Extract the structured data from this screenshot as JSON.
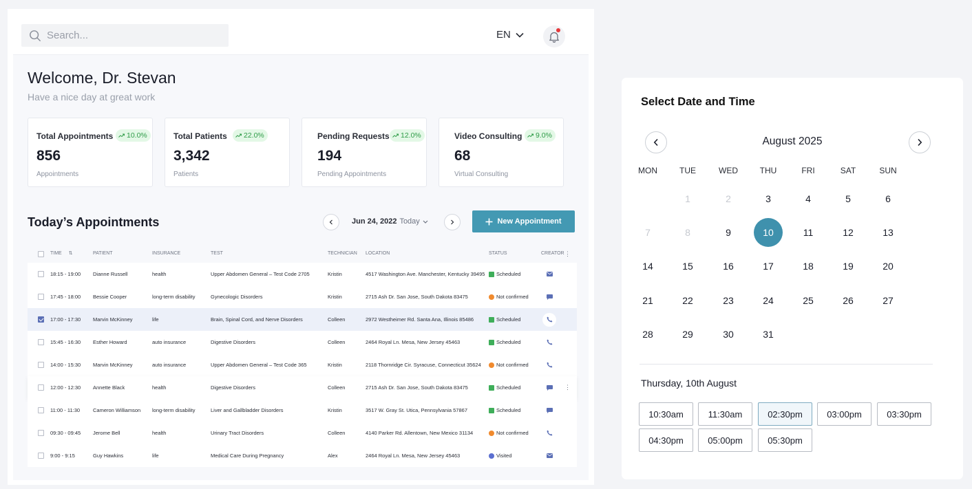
{
  "header": {
    "search_placeholder": "Search...",
    "language": "EN"
  },
  "welcome": {
    "title": "Welcome, Dr. Stevan",
    "subtitle": "Have a nice day at great work"
  },
  "stats": [
    {
      "label": "Total Appointments",
      "change": "10.0%",
      "value": "856",
      "caption": "Appointments"
    },
    {
      "label": "Total Patients",
      "change": "22.0%",
      "value": "3,342",
      "caption": "Patients"
    },
    {
      "label": "Pending Requests",
      "change": "12.0%",
      "value": "194",
      "caption": "Pending Appointments"
    },
    {
      "label": "Video Consulting",
      "change": "9.0%",
      "value": "68",
      "caption": "Virtual Consulting"
    }
  ],
  "appointments": {
    "title": "Today’s Appointments",
    "date": "Jun 24, 2022",
    "date_suffix": "Today",
    "new_button": "New Appointment",
    "columns": [
      "Time",
      "Patient",
      "Insurance",
      "Test",
      "Technician",
      "Location",
      "Status",
      "Creator"
    ],
    "rows": [
      {
        "time": "18:15 - 19:00",
        "patient": "Dianne Russell",
        "insurance": "health",
        "test": "Upper Abdomen General – Test Code 2705",
        "technician": "Kristin",
        "location": "4517 Washington Ave. Manchester, Kentucky 39495",
        "status": "Scheduled",
        "creator": "mail"
      },
      {
        "time": "17:45 - 18:00",
        "patient": "Bessie Cooper",
        "insurance": "long-term disability",
        "test": "Gynecologic Disorders",
        "technician": "Kristin",
        "location": "2715 Ash Dr. San Jose, South Dakota 83475",
        "status": "Not confirmed",
        "creator": "chat"
      },
      {
        "time": "17:00 - 17:30",
        "patient": "Marvin McKinney",
        "insurance": "life",
        "test": "Brain, Spinal Cord, and Nerve Disorders",
        "technician": "Colleen",
        "location": "2972 Westheimer Rd. Santa Ana, Illinois 85486",
        "status": "Scheduled",
        "creator": "phone"
      },
      {
        "time": "15:45 - 16:30",
        "patient": "Esther Howard",
        "insurance": "auto insurance",
        "test": "Digestive Disorders",
        "technician": "Colleen",
        "location": "2464 Royal Ln. Mesa, New Jersey 45463",
        "status": "Scheduled",
        "creator": "phone"
      },
      {
        "time": "14:00 - 15:30",
        "patient": "Marvin McKinney",
        "insurance": "auto insurance",
        "test": "Upper Abdomen General – Test Code 365",
        "technician": "Kristin",
        "location": "2118 Thornridge Cir. Syracuse, Connecticut 35624",
        "status": "Not confirmed",
        "creator": "phone"
      },
      {
        "time": "12:00 - 12:30",
        "patient": "Annette Black",
        "insurance": "health",
        "test": "Digestive Disorders",
        "technician": "Colleen",
        "location": "2715 Ash Dr. San Jose, South Dakota 83475",
        "status": "Scheduled",
        "creator": "chat"
      },
      {
        "time": "11:00 - 11:30",
        "patient": "Cameron Williamson",
        "insurance": "long-term disability",
        "test": "Liver and Gallbladder Disorders",
        "technician": "Kristin",
        "location": "3517 W. Gray St. Utica, Pennsylvania 57867",
        "status": "Scheduled",
        "creator": "chat"
      },
      {
        "time": "09:30 - 09:45",
        "patient": "Jerome Bell",
        "insurance": "health",
        "test": "Urinary Tract Disorders",
        "technician": "Colleen",
        "location": "4140 Parker Rd. Allentown, New Mexico 31134",
        "status": "Not confirmed",
        "creator": "phone"
      },
      {
        "time": "9:00 - 9:15",
        "patient": "Guy Hawkins",
        "insurance": "life",
        "test": "Medical Care During Pregnancy",
        "technician": "Alex",
        "location": "2464 Royal Ln. Mesa, New Jersey 45463",
        "status": "Visited",
        "creator": "mail"
      }
    ]
  },
  "colors": {
    "accent": "#4399b3",
    "calendar_selected": "#3f91ad",
    "scheduled": "#3fae5a",
    "not_confirmed": "#f08a2e",
    "visited": "#5b6fd0",
    "creator_icon": "#5b6fb5"
  },
  "datetime": {
    "title": "Select Date and Time",
    "month": "August 2025",
    "weekdays": [
      "MON",
      "TUE",
      "WED",
      "THU",
      "FRI",
      "SAT",
      "SUN"
    ],
    "days": [
      {
        "n": "1",
        "off": true
      },
      {
        "n": "2",
        "off": true
      },
      {
        "n": "3"
      },
      {
        "n": "4"
      },
      {
        "n": "5"
      },
      {
        "n": "6"
      },
      {
        "n": "7",
        "off": true
      },
      {
        "n": "8",
        "off": true
      },
      {
        "n": "9"
      },
      {
        "n": "10",
        "selected": true
      },
      {
        "n": "11"
      },
      {
        "n": "12"
      },
      {
        "n": "13"
      },
      {
        "n": "14"
      },
      {
        "n": "15"
      },
      {
        "n": "16"
      },
      {
        "n": "17"
      },
      {
        "n": "18"
      },
      {
        "n": "19"
      },
      {
        "n": "20"
      },
      {
        "n": "21"
      },
      {
        "n": "22"
      },
      {
        "n": "23"
      },
      {
        "n": "24"
      },
      {
        "n": "25"
      },
      {
        "n": "26"
      },
      {
        "n": "27"
      },
      {
        "n": "28"
      },
      {
        "n": "29"
      },
      {
        "n": "30"
      },
      {
        "n": "31"
      }
    ],
    "selected_label": "Thursday, 10th August",
    "slots": [
      {
        "t": "10:30am"
      },
      {
        "t": "11:30am"
      },
      {
        "t": "02:30pm",
        "selected": true
      },
      {
        "t": "03:00pm"
      },
      {
        "t": "03:30pm"
      },
      {
        "t": "04:30pm"
      },
      {
        "t": "05:00pm"
      },
      {
        "t": "05:30pm"
      }
    ]
  }
}
